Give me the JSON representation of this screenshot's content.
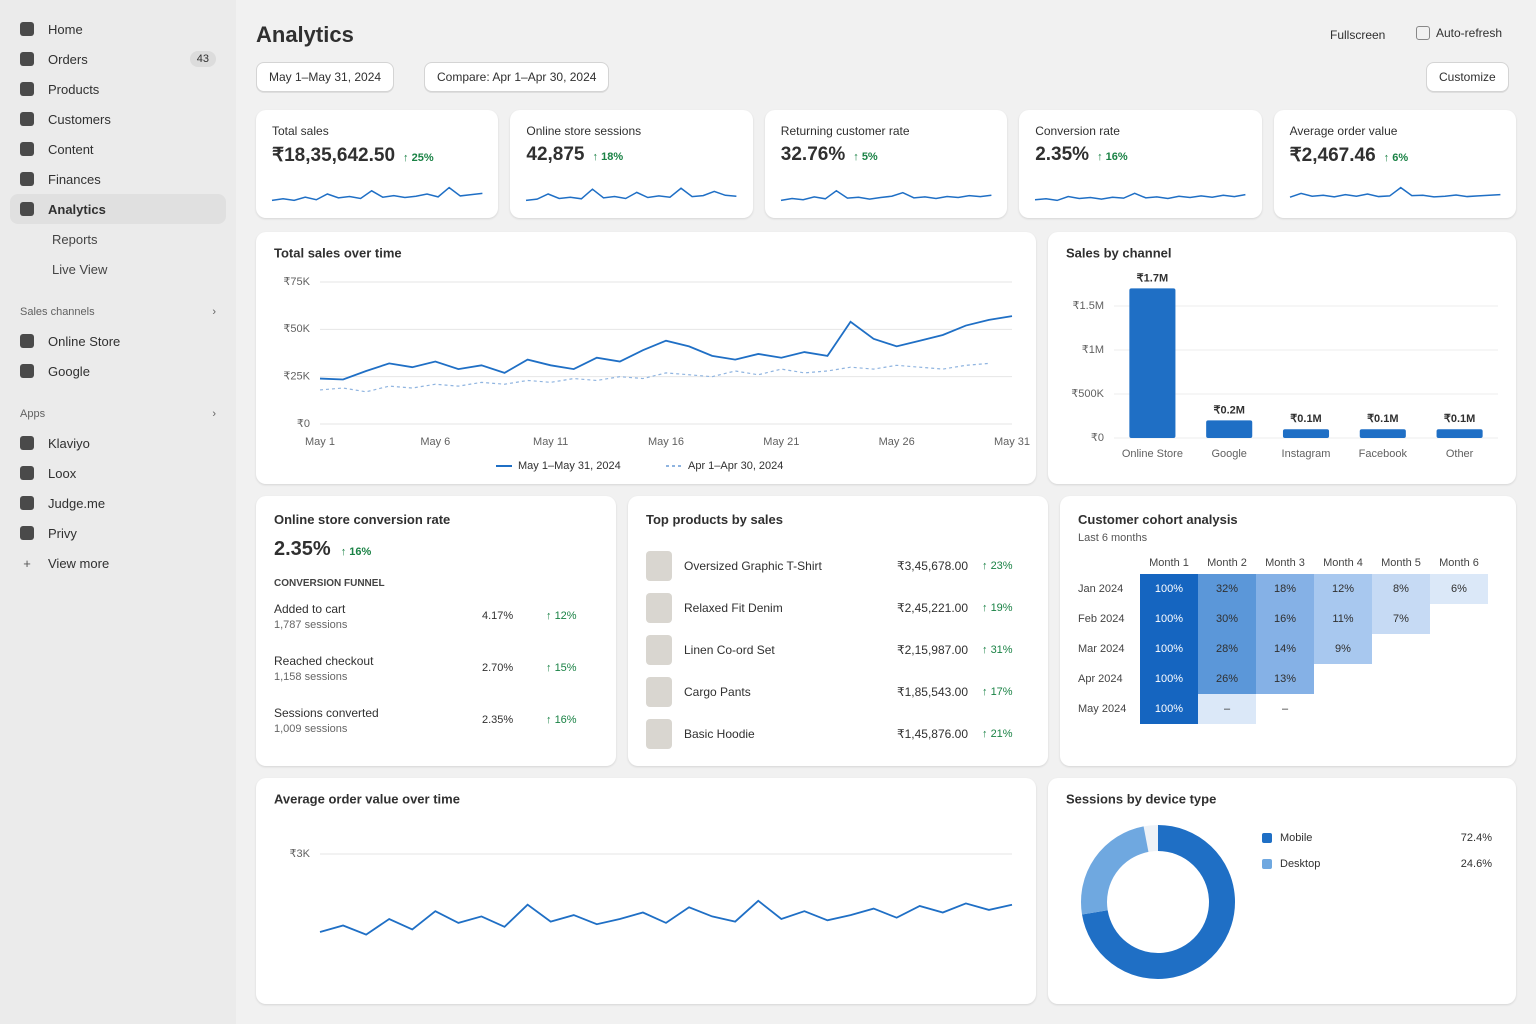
{
  "sidebar": {
    "nav": [
      {
        "label": "Home"
      },
      {
        "label": "Orders",
        "badge": "43"
      },
      {
        "label": "Products"
      },
      {
        "label": "Customers"
      },
      {
        "label": "Content"
      },
      {
        "label": "Finances"
      },
      {
        "label": "Analytics"
      }
    ],
    "analytics_sub": [
      "Reports",
      "Live View"
    ],
    "sales_channels_title": "Sales channels",
    "sales_channels": [
      "Online Store",
      "Google"
    ],
    "apps_title": "Apps",
    "apps": [
      "Klaviyo",
      "Loox",
      "Judge.me",
      "Privy"
    ],
    "view_more": "View more"
  },
  "header": {
    "title": "Analytics",
    "fullscreen": "Fullscreen",
    "auto_refresh": "Auto-refresh",
    "date_range": "May 1–May 31, 2024",
    "compare": "Compare: Apr 1–Apr 30, 2024",
    "customize": "Customize"
  },
  "kpis": [
    {
      "label": "Total sales",
      "value": "₹18,35,642.50",
      "change": "25%",
      "spark": {
        "ylim": [
          0,
          10
        ],
        "values": [
          3,
          3.5,
          3,
          4,
          3.2,
          5,
          3.8,
          4.2,
          3.6,
          6,
          4,
          4.5,
          3.9,
          4.3,
          5,
          4.1,
          7,
          4.4,
          4.8,
          5.2
        ]
      }
    },
    {
      "label": "Online store sessions",
      "value": "42,875",
      "change": "18%",
      "spark": {
        "ylim": [
          0,
          10
        ],
        "values": [
          3,
          3.4,
          5,
          3.6,
          4,
          3.5,
          6.5,
          3.8,
          4.2,
          3.6,
          5.5,
          3.9,
          4.4,
          4,
          6.8,
          4.2,
          4.5,
          5.8,
          4.6,
          4.3
        ]
      }
    },
    {
      "label": "Returning customer rate",
      "value": "32.76%",
      "change": "5%",
      "spark": {
        "ylim": [
          0,
          10
        ],
        "values": [
          3,
          3.6,
          3.2,
          4.1,
          3.5,
          6,
          3.7,
          4,
          3.4,
          3.9,
          4.3,
          5.4,
          3.8,
          4.1,
          3.6,
          4.2,
          3.9,
          4.5,
          4.2,
          4.6
        ]
      }
    },
    {
      "label": "Conversion rate",
      "value": "2.35%",
      "change": "16%",
      "spark": {
        "ylim": [
          0,
          10
        ],
        "values": [
          3.2,
          3.5,
          3,
          4.2,
          3.6,
          3.9,
          3.4,
          4,
          3.7,
          5.2,
          3.8,
          4.1,
          3.6,
          4.3,
          3.9,
          4.4,
          4,
          4.6,
          4.2,
          4.8
        ]
      }
    },
    {
      "label": "Average order value",
      "value": "₹2,467.46",
      "change": "6%",
      "spark": {
        "ylim": [
          0,
          10
        ],
        "values": [
          4,
          5.2,
          4.3,
          4.6,
          4.1,
          4.8,
          4.3,
          5,
          4.2,
          4.4,
          7,
          4.5,
          4.6,
          4.1,
          4.3,
          4.7,
          4.2,
          4.4,
          4.6,
          4.8
        ]
      }
    }
  ],
  "sales_over_time": {
    "type": "line",
    "title": "Total sales over time",
    "categories": [
      "May 1",
      null,
      null,
      null,
      null,
      "May 6",
      null,
      null,
      null,
      null,
      "May 11",
      null,
      null,
      null,
      null,
      "May 16",
      null,
      null,
      null,
      null,
      "May 21",
      null,
      null,
      null,
      null,
      "May 26",
      null,
      null,
      null,
      null,
      "May 31"
    ],
    "ylim": [
      0,
      75000
    ],
    "yticks": [
      {
        "value": 0,
        "label": "₹0"
      },
      {
        "value": 25000,
        "label": "₹25K"
      },
      {
        "value": 50000,
        "label": "₹50K"
      },
      {
        "value": 75000,
        "label": "₹75K"
      }
    ],
    "grid": true,
    "series": [
      {
        "name": "May 1–May 31, 2024",
        "color": "#1f6fc5",
        "values": [
          24000,
          23500,
          28000,
          32000,
          30000,
          33000,
          29000,
          31000,
          27000,
          34000,
          31000,
          29000,
          35000,
          33000,
          39000,
          44000,
          41000,
          36000,
          34000,
          37000,
          35000,
          38000,
          36000,
          54000,
          45000,
          41000,
          44000,
          47000,
          52000,
          55000,
          57000
        ]
      },
      {
        "name": "Apr 1–Apr 30, 2024",
        "color": "#8fb4e0",
        "dashed": true,
        "values": [
          18000,
          19000,
          17000,
          20000,
          19000,
          21000,
          20000,
          22000,
          21000,
          23000,
          22000,
          24000,
          23000,
          25000,
          24000,
          27000,
          26000,
          25000,
          28000,
          26000,
          29000,
          27000,
          28000,
          30000,
          29000,
          31000,
          30000,
          29000,
          31000,
          32000,
          null
        ]
      }
    ]
  },
  "sales_by_channel": {
    "type": "bar",
    "title": "Sales by channel",
    "categories": [
      "Online Store",
      "Google",
      "Instagram",
      "Facebook",
      "Other"
    ],
    "values": [
      1700000,
      200000,
      100000,
      100000,
      100000
    ],
    "value_labels": [
      "₹1.7M",
      "₹0.2M",
      "₹0.1M",
      "₹0.1M",
      "₹0.1M"
    ],
    "color": "#1f6fc5",
    "ylim": [
      0,
      1750000
    ],
    "yticks": [
      {
        "value": 0,
        "label": "₹0"
      },
      {
        "value": 500000,
        "label": "₹500K"
      },
      {
        "value": 1000000,
        "label": "₹1M"
      },
      {
        "value": 1500000,
        "label": "₹1.5M"
      }
    ],
    "grid": true
  },
  "conversion": {
    "title": "Online store conversion rate",
    "value": "2.35%",
    "change": "16%",
    "funnel_title": "CONVERSION FUNNEL",
    "steps": [
      {
        "label": "Added to cart",
        "sessions": "1,787 sessions",
        "rate": "4.17%",
        "change": "12%"
      },
      {
        "label": "Reached checkout",
        "sessions": "1,158 sessions",
        "rate": "2.70%",
        "change": "15%"
      },
      {
        "label": "Sessions converted",
        "sessions": "1,009 sessions",
        "rate": "2.35%",
        "change": "16%"
      }
    ]
  },
  "top_products": {
    "title": "Top products by sales",
    "items": [
      {
        "name": "Oversized Graphic T-Shirt",
        "sales": "₹3,45,678.00",
        "change": "23%"
      },
      {
        "name": "Relaxed Fit Denim",
        "sales": "₹2,45,221.00",
        "change": "19%"
      },
      {
        "name": "Linen Co-ord Set",
        "sales": "₹2,15,987.00",
        "change": "31%"
      },
      {
        "name": "Cargo Pants",
        "sales": "₹1,85,543.00",
        "change": "17%"
      },
      {
        "name": "Basic Hoodie",
        "sales": "₹1,45,876.00",
        "change": "21%"
      }
    ]
  },
  "cohort": {
    "title": "Customer cohort analysis",
    "subtitle": "Last 6 months",
    "columns": [
      "Month 1",
      "Month 2",
      "Month 3",
      "Month 4",
      "Month 5",
      "Month 6"
    ],
    "rows": [
      {
        "label": "Jan 2024",
        "cells": [
          "100%",
          "32%",
          "18%",
          "12%",
          "8%",
          "6%"
        ]
      },
      {
        "label": "Feb 2024",
        "cells": [
          "100%",
          "30%",
          "16%",
          "11%",
          "7%"
        ]
      },
      {
        "label": "Mar 2024",
        "cells": [
          "100%",
          "28%",
          "14%",
          "9%"
        ]
      },
      {
        "label": "Apr 2024",
        "cells": [
          "100%",
          "26%",
          "13%"
        ]
      },
      {
        "label": "May 2024",
        "cells": [
          "100%",
          "–",
          "–"
        ]
      }
    ]
  },
  "aov_over_time": {
    "type": "line",
    "title": "Average order value over time",
    "ylim": [
      2000,
      3200
    ],
    "yticks": [
      {
        "value": 3000,
        "label": "₹3K"
      }
    ],
    "grid": true,
    "series": [
      {
        "color": "#1f6fc5",
        "values": [
          2400,
          2450,
          2380,
          2500,
          2420,
          2560,
          2470,
          2520,
          2440,
          2610,
          2480,
          2530,
          2460,
          2500,
          2550,
          2470,
          2590,
          2520,
          2480,
          2640,
          2500,
          2560,
          2490,
          2530,
          2580,
          2510,
          2600,
          2550,
          2620,
          2570,
          2610
        ]
      }
    ]
  },
  "devices": {
    "type": "pie",
    "title": "Sessions by device type",
    "series": [
      {
        "name": "Mobile",
        "color": "#1f6fc5",
        "value": 72.4,
        "value_label": "72.4%"
      },
      {
        "name": "Desktop",
        "color": "#6fa8e0",
        "value": 24.6,
        "value_label": "24.6%"
      }
    ]
  }
}
